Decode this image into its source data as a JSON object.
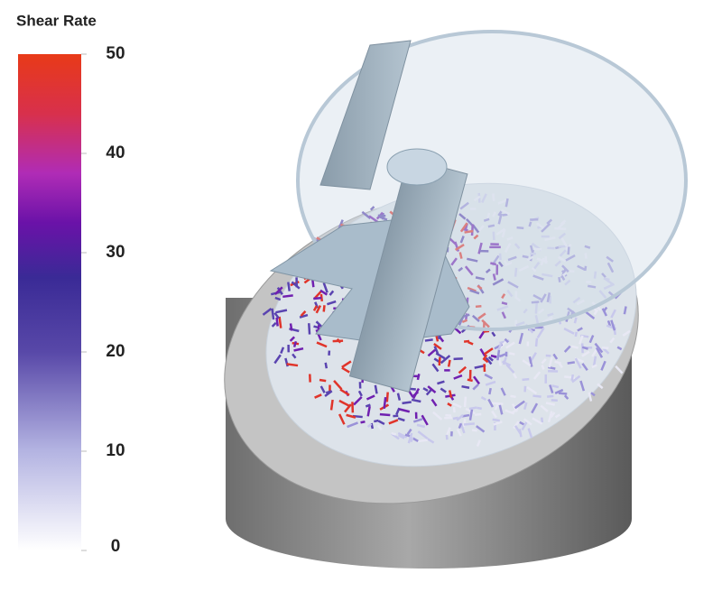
{
  "colorbar": {
    "title": "Shear Rate",
    "lim": [
      0,
      50
    ],
    "ticks": [
      0,
      10,
      20,
      30,
      40,
      50
    ]
  }
}
